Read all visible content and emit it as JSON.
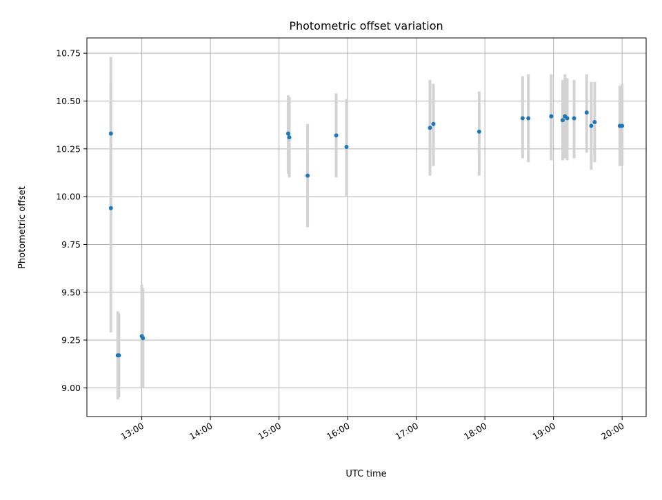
{
  "chart_data": {
    "type": "scatter",
    "title": "Photometric offset variation",
    "xlabel": "UTC time",
    "ylabel": "Photometric offset",
    "xlim": [
      "12:12",
      "20:21"
    ],
    "ylim": [
      8.85,
      10.83
    ],
    "x_ticks": [
      "13:00",
      "14:00",
      "15:00",
      "16:00",
      "17:00",
      "18:00",
      "19:00",
      "20:00"
    ],
    "y_ticks": [
      "9.00",
      "9.25",
      "9.50",
      "9.75",
      "10.00",
      "10.25",
      "10.50",
      "10.75"
    ],
    "grid": true,
    "colors": {
      "point": "#1f77b4",
      "errorbar": "#d3d3d3",
      "grid": "#b0b0b0"
    },
    "points": [
      {
        "x": "12:33",
        "y": 10.33,
        "ylo": 9.93,
        "yhi": 10.73
      },
      {
        "x": "12:33",
        "y": 9.94,
        "ylo": 9.29,
        "yhi": 10.59
      },
      {
        "x": "12:39",
        "y": 9.17,
        "ylo": 8.94,
        "yhi": 9.4
      },
      {
        "x": "12:40",
        "y": 9.17,
        "ylo": 8.95,
        "yhi": 9.39
      },
      {
        "x": "13:00",
        "y": 9.27,
        "ylo": 9.0,
        "yhi": 9.54
      },
      {
        "x": "13:01",
        "y": 9.26,
        "ylo": 9.0,
        "yhi": 9.52
      },
      {
        "x": "15:08",
        "y": 10.33,
        "ylo": 10.12,
        "yhi": 10.53
      },
      {
        "x": "15:09",
        "y": 10.31,
        "ylo": 10.1,
        "yhi": 10.52
      },
      {
        "x": "15:25",
        "y": 10.11,
        "ylo": 9.84,
        "yhi": 10.38
      },
      {
        "x": "15:50",
        "y": 10.32,
        "ylo": 10.1,
        "yhi": 10.54
      },
      {
        "x": "15:59",
        "y": 10.26,
        "ylo": 10.0,
        "yhi": 10.51
      },
      {
        "x": "17:12",
        "y": 10.36,
        "ylo": 10.11,
        "yhi": 10.61
      },
      {
        "x": "17:15",
        "y": 10.38,
        "ylo": 10.16,
        "yhi": 10.59
      },
      {
        "x": "17:55",
        "y": 10.34,
        "ylo": 10.11,
        "yhi": 10.55
      },
      {
        "x": "18:33",
        "y": 10.41,
        "ylo": 10.2,
        "yhi": 10.63
      },
      {
        "x": "18:38",
        "y": 10.41,
        "ylo": 10.18,
        "yhi": 10.64
      },
      {
        "x": "18:58",
        "y": 10.42,
        "ylo": 10.19,
        "yhi": 10.64
      },
      {
        "x": "19:08",
        "y": 10.4,
        "ylo": 10.19,
        "yhi": 10.61
      },
      {
        "x": "19:10",
        "y": 10.42,
        "ylo": 10.2,
        "yhi": 10.64
      },
      {
        "x": "19:12",
        "y": 10.41,
        "ylo": 10.19,
        "yhi": 10.62
      },
      {
        "x": "19:18",
        "y": 10.41,
        "ylo": 10.2,
        "yhi": 10.61
      },
      {
        "x": "19:29",
        "y": 10.44,
        "ylo": 10.23,
        "yhi": 10.64
      },
      {
        "x": "19:33",
        "y": 10.37,
        "ylo": 10.14,
        "yhi": 10.6
      },
      {
        "x": "19:36",
        "y": 10.39,
        "ylo": 10.18,
        "yhi": 10.6
      },
      {
        "x": "19:58",
        "y": 10.37,
        "ylo": 10.16,
        "yhi": 10.58
      },
      {
        "x": "20:00",
        "y": 10.37,
        "ylo": 10.16,
        "yhi": 10.59
      }
    ]
  }
}
